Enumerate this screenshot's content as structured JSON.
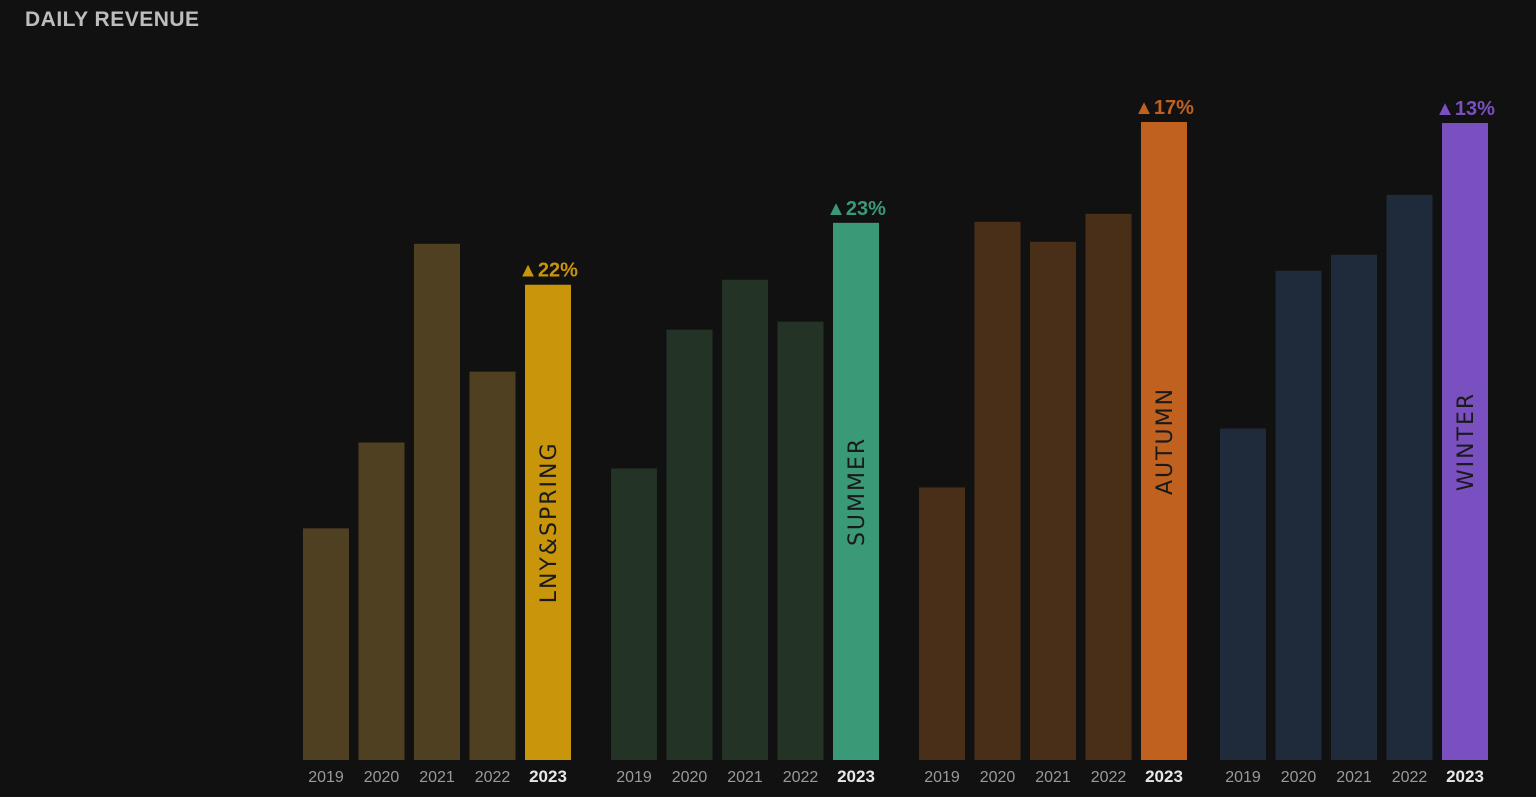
{
  "chart_data": {
    "type": "bar",
    "title": "DAILY REVENUE",
    "xlabel": "",
    "ylabel": "",
    "ylim": [
      0,
      640
    ],
    "grid": false,
    "categories": [
      "2019",
      "2020",
      "2021",
      "2022",
      "2023"
    ],
    "series": [
      {
        "name": "LNY&SPRING",
        "values": [
          232,
          318,
          517,
          389,
          476
        ],
        "change": "▲22%",
        "color_dim": "#4e4020",
        "color": "#c9950a"
      },
      {
        "name": "SUMMER",
        "values": [
          292,
          431,
          481,
          439,
          538
        ],
        "change": "▲23%",
        "color_dim": "#233426",
        "color": "#3a9a78"
      },
      {
        "name": "AUTUMN",
        "values": [
          273,
          539,
          519,
          547,
          639
        ],
        "change": "▲17%",
        "color_dim": "#4a2f18",
        "color": "#c0611f"
      },
      {
        "name": "WINTER",
        "values": [
          332,
          490,
          506,
          566,
          638
        ],
        "change": "▲13%",
        "color_dim": "#1f2a3a",
        "color": "#7a50c0"
      }
    ]
  }
}
